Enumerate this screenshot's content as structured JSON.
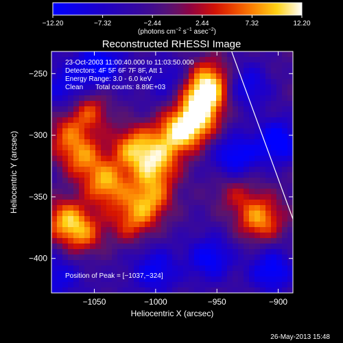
{
  "chart_data": {
    "type": "heatmap",
    "title": "Reconstructed RHESSI Image",
    "xlabel": "Heliocentric X (arcsec)",
    "ylabel": "Heliocentric Y (arcsec)",
    "xlim": [
      -1085,
      -888
    ],
    "ylim": [
      -428,
      -232
    ],
    "x_ticks": [
      -1050,
      -1000,
      -950,
      -900
    ],
    "x_tick_labels": [
      "−1050",
      "−1000",
      "−950",
      "−900"
    ],
    "y_ticks": [
      -250,
      -300,
      -350,
      -400
    ],
    "y_tick_labels": [
      "−250",
      "−300",
      "−350",
      "−400"
    ],
    "colorbar": {
      "min": -12.2,
      "max": 12.2,
      "tick_values": [
        -12.2,
        -7.32,
        -2.44,
        2.44,
        7.32,
        12.2
      ],
      "tick_labels": [
        "−12.20",
        "−7.32",
        "−2.44",
        "2.44",
        "7.32",
        "12.20"
      ],
      "unit_label": "(photons cm",
      "unit_exp1": "−2",
      "unit_mid": " s",
      "unit_exp2": "−1",
      "unit_mid2": " asec",
      "unit_exp3": "−2",
      "unit_end": ")"
    },
    "limb_line": [
      [
        -938,
        -232
      ],
      [
        -888,
        -368
      ]
    ],
    "sources": [
      {
        "x": -1055,
        "y": -280,
        "value": 9.0
      },
      {
        "x": -1060,
        "y": -318,
        "value": 9.5
      },
      {
        "x": -1040,
        "y": -340,
        "value": 11.5
      },
      {
        "x": -1018,
        "y": -310,
        "value": 11.0
      },
      {
        "x": -1000,
        "y": -325,
        "value": 10.5
      },
      {
        "x": -1005,
        "y": -352,
        "value": 10.0
      },
      {
        "x": -985,
        "y": -300,
        "value": 10.5
      },
      {
        "x": -962,
        "y": -270,
        "value": 12.0
      },
      {
        "x": -968,
        "y": -290,
        "value": 11.0
      },
      {
        "x": -955,
        "y": -255,
        "value": 9.0
      },
      {
        "x": -1075,
        "y": -368,
        "value": 10.0
      },
      {
        "x": -1060,
        "y": -380,
        "value": 9.0
      },
      {
        "x": -1020,
        "y": -370,
        "value": 8.0
      },
      {
        "x": -1075,
        "y": -300,
        "value": 7.0
      },
      {
        "x": -915,
        "y": -368,
        "value": 10.5
      },
      {
        "x": -935,
        "y": -345,
        "value": 5.0
      }
    ],
    "sinks": [
      {
        "x": -1045,
        "y": -242,
        "value": -9.0
      },
      {
        "x": -1072,
        "y": -262,
        "value": -7.0
      },
      {
        "x": -990,
        "y": -255,
        "value": -5.0
      },
      {
        "x": -935,
        "y": -318,
        "value": -10.0
      },
      {
        "x": -900,
        "y": -305,
        "value": -11.0
      },
      {
        "x": -955,
        "y": -400,
        "value": -9.0
      },
      {
        "x": -1000,
        "y": -410,
        "value": -8.0
      },
      {
        "x": -905,
        "y": -410,
        "value": -10.0
      },
      {
        "x": -1080,
        "y": -415,
        "value": -6.0
      },
      {
        "x": -925,
        "y": -260,
        "value": -8.0
      }
    ],
    "annotations": {
      "line1": "23-Oct-2003 11:00:40.000 to 11:03:50.000",
      "line2": "Detectors: 4F 5F 6F 7F 8F, Att 1",
      "line3": "Energy Range: 3.0 - 6.0 keV",
      "line4_a": "Clean",
      "line4_b": "Total counts: 8.89E+03",
      "peak": "Position of Peak = [−1037,−324]"
    },
    "footer_date": "26-May-2013 15:48",
    "colors": {
      "background": "#000000",
      "text": "#ffffff"
    }
  }
}
